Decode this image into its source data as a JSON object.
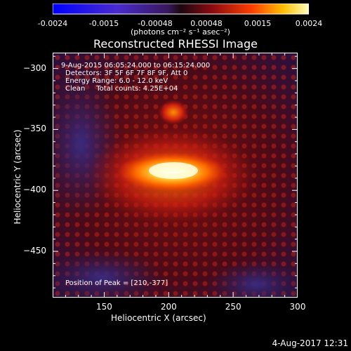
{
  "colorbar": {
    "ticks": [
      "-0.0024",
      "-0.0015",
      "-0.00048",
      "0.00048",
      "0.0015",
      "0.0024"
    ],
    "unit_label": "(photons cm⁻² s⁻¹ asec⁻²)"
  },
  "chart_data": {
    "type": "heatmap",
    "title": "Reconstructed RHESSI Image",
    "xlabel": "Heliocentric X (arcsec)",
    "ylabel": "Heliocentric Y (arcsec)",
    "xlim": [
      110,
      300
    ],
    "ylim": [
      -488,
      -287
    ],
    "xticks": [
      "150",
      "200",
      "250",
      "300"
    ],
    "yticks": [
      "-300",
      "-350",
      "-400",
      "-450"
    ],
    "peak": [
      210,
      -377
    ],
    "info_lines": [
      "9-Aug-2015 06:05:24.000 to 06:15:24.000",
      "Detectors: 3F 5F 6F 7F 8F 9F, Att 0",
      "Energy Range: 6.0 - 12.0 keV",
      "Clean     Total counts: 4.25E+04"
    ],
    "peak_label": "Position of Peak = [210,-377]"
  },
  "footer": {
    "timestamp": "4-Aug-2017 12:31"
  },
  "colors": {
    "background": "#000000",
    "text": "#ffffff"
  }
}
